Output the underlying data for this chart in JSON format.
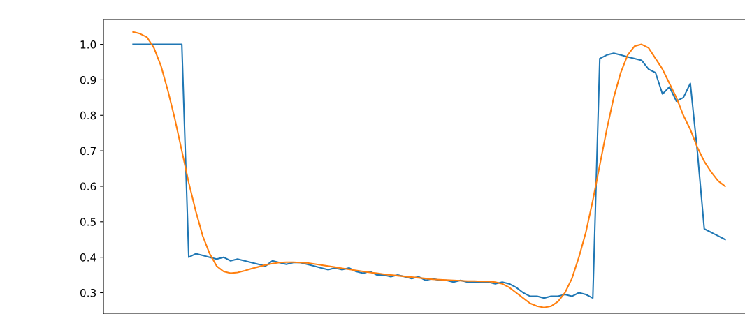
{
  "chart_data": {
    "type": "line",
    "categories": [
      null,
      null,
      null,
      null,
      null,
      null,
      null,
      null,
      null,
      null,
      null,
      null,
      null,
      null,
      null,
      null,
      null,
      null,
      null,
      null,
      null,
      null,
      null,
      null,
      null,
      null,
      null,
      null,
      null,
      null,
      null,
      null,
      null,
      null,
      null,
      null,
      null,
      null,
      null,
      null,
      null,
      null,
      null,
      null,
      null,
      null,
      null,
      null,
      null,
      null,
      null,
      null,
      null,
      null,
      null,
      null,
      null,
      null,
      null,
      null,
      null,
      null,
      null,
      null,
      null,
      null,
      null,
      null,
      null,
      null,
      null,
      null,
      null,
      null,
      null,
      null,
      null,
      null,
      null,
      null,
      null,
      null,
      null,
      null,
      null,
      null
    ],
    "series": [
      {
        "color": "#1f77b4",
        "values": [
          1.0,
          1.0,
          1.0,
          1.0,
          1.0,
          1.0,
          1.0,
          1.0,
          0.4,
          0.41,
          0.405,
          0.4,
          0.395,
          0.4,
          0.39,
          0.395,
          0.39,
          0.385,
          0.38,
          0.375,
          0.39,
          0.385,
          0.38,
          0.385,
          0.385,
          0.38,
          0.375,
          0.37,
          0.365,
          0.37,
          0.365,
          0.37,
          0.36,
          0.355,
          0.36,
          0.35,
          0.35,
          0.345,
          0.35,
          0.345,
          0.34,
          0.345,
          0.335,
          0.34,
          0.335,
          0.335,
          0.33,
          0.335,
          0.33,
          0.33,
          0.33,
          0.33,
          0.325,
          0.33,
          0.325,
          0.315,
          0.3,
          0.29,
          0.29,
          0.285,
          0.29,
          0.29,
          0.295,
          0.29,
          0.3,
          0.295,
          0.285,
          0.96,
          0.97,
          0.975,
          0.97,
          0.965,
          0.96,
          0.955,
          0.93,
          0.92,
          0.86,
          0.88,
          0.84,
          0.85,
          0.89,
          0.7,
          0.48,
          0.47,
          0.46,
          0.45
        ]
      },
      {
        "color": "#ff7f0e",
        "values": [
          1.035,
          1.03,
          1.02,
          0.99,
          0.94,
          0.87,
          0.79,
          0.7,
          0.61,
          0.53,
          0.46,
          0.41,
          0.375,
          0.36,
          0.355,
          0.357,
          0.362,
          0.368,
          0.373,
          0.378,
          0.382,
          0.385,
          0.386,
          0.386,
          0.385,
          0.384,
          0.381,
          0.378,
          0.375,
          0.372,
          0.369,
          0.366,
          0.363,
          0.36,
          0.357,
          0.355,
          0.352,
          0.35,
          0.348,
          0.346,
          0.344,
          0.342,
          0.34,
          0.338,
          0.337,
          0.336,
          0.335,
          0.334,
          0.333,
          0.333,
          0.332,
          0.332,
          0.33,
          0.325,
          0.315,
          0.3,
          0.285,
          0.27,
          0.262,
          0.258,
          0.262,
          0.275,
          0.3,
          0.34,
          0.4,
          0.47,
          0.56,
          0.66,
          0.76,
          0.85,
          0.92,
          0.97,
          0.995,
          1.0,
          0.99,
          0.96,
          0.93,
          0.89,
          0.85,
          0.8,
          0.76,
          0.71,
          0.67,
          0.64,
          0.615,
          0.6
        ]
      }
    ],
    "ylim": [
      0.24,
      1.07
    ],
    "yticks": [
      0.3,
      0.4,
      0.5,
      0.6,
      0.7,
      0.8,
      0.9,
      {
        "value": 1.0,
        "label": "1.0"
      }
    ],
    "tick_labels": "y"
  }
}
